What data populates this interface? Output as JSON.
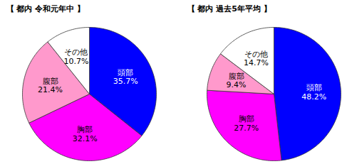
{
  "chart_data": [
    {
      "type": "pie",
      "title": "【 都内 令和元年中 】",
      "categories": [
        "頭部",
        "胸部",
        "腹部",
        "その他"
      ],
      "values": [
        35.7,
        32.1,
        21.4,
        10.7
      ],
      "value_labels": [
        "35.7%",
        "32.1%",
        "21.4%",
        "10.7%"
      ],
      "colors": [
        "#0000ff",
        "#ff00ff",
        "#ff99cc",
        "#ffffff"
      ],
      "data_labels": true
    },
    {
      "type": "pie",
      "title": "【 都内 過去5年平均 】",
      "categories": [
        "頭部",
        "胸部",
        "腹部",
        "その他"
      ],
      "values": [
        48.2,
        27.7,
        9.4,
        14.7
      ],
      "value_labels": [
        "48.2%",
        "27.7%",
        "9.4%",
        "14.7%"
      ],
      "colors": [
        "#0000ff",
        "#ff00ff",
        "#ff99cc",
        "#ffffff"
      ],
      "data_labels": true
    }
  ]
}
